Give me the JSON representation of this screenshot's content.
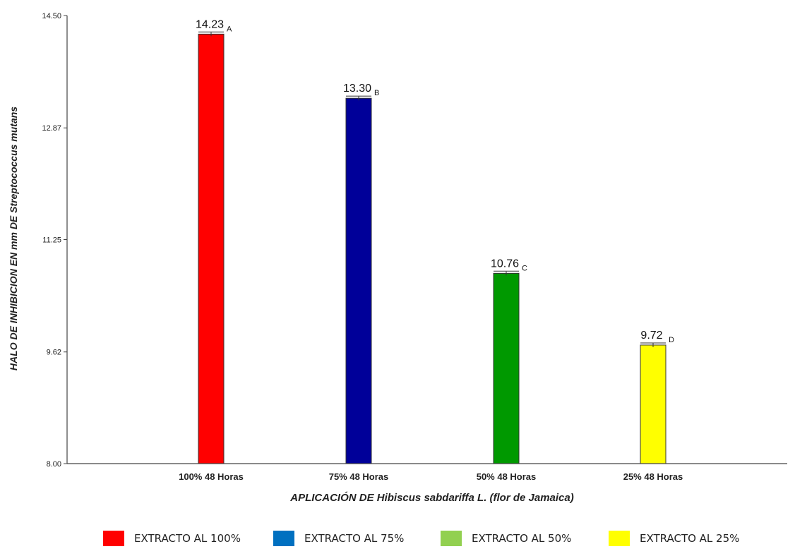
{
  "chart_data": {
    "type": "bar",
    "categories": [
      "100% 48 Horas",
      "75% 48 Horas",
      "50% 48 Horas",
      "25% 48 Horas"
    ],
    "values": [
      14.23,
      13.3,
      10.76,
      9.72
    ],
    "value_labels": [
      "14.23",
      "13.30",
      "10.76",
      "9.72"
    ],
    "group_letters": [
      "A",
      "B",
      "C",
      "D"
    ],
    "bar_colors": [
      "#ff0000",
      "#000099",
      "#009900",
      "#ffff00"
    ],
    "xlabel": "APLICACIÓN DE Hibiscus sabdariffa L. (flor de Jamaica)",
    "ylabel": "HALO DE INHIBICION EN mm DE Streptococcus mutans",
    "ylim": [
      8.0,
      14.5
    ],
    "yticks": [
      "8.00",
      "9.62",
      "11.25",
      "12.87",
      "14.50"
    ],
    "grid": false,
    "legend_position": "bottom",
    "legend": [
      {
        "label": "EXTRACTO AL 100%",
        "color": "#ff0000"
      },
      {
        "label": "EXTRACTO AL 75%",
        "color": "#0070c0"
      },
      {
        "label": "EXTRACTO AL 50%",
        "color": "#92d050"
      },
      {
        "label": "EXTRACTO AL 25%",
        "color": "#ffff00"
      }
    ]
  }
}
